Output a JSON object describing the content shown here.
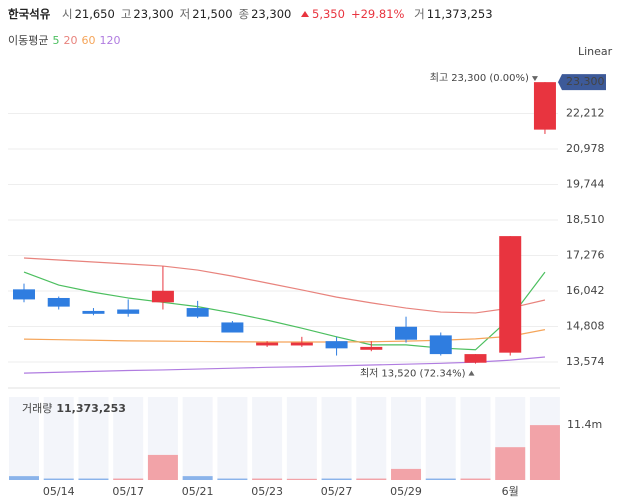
{
  "header": {
    "name": "한국석유",
    "items": [
      {
        "label": "시",
        "value": "21,650"
      },
      {
        "label": "고",
        "value": "23,300"
      },
      {
        "label": "저",
        "value": "21,500"
      },
      {
        "label": "종",
        "value": "23,300"
      }
    ],
    "change": "5,350",
    "change_pct": "+29.81%",
    "volume_label": "거",
    "volume": "11,373,253"
  },
  "chart_data": {
    "type": "candlestick",
    "scale": "Linear",
    "categories": [
      null,
      "05/14",
      null,
      "05/17",
      null,
      "05/21",
      null,
      "05/23",
      null,
      "05/27",
      null,
      "05/29",
      null,
      null,
      "6월",
      null
    ],
    "open": [
      16100,
      15800,
      15350,
      15400,
      15650,
      15450,
      14950,
      14150,
      14150,
      14300,
      14000,
      14800,
      14500,
      13550,
      13900,
      21650
    ],
    "high": [
      16300,
      15850,
      15450,
      15750,
      16900,
      15700,
      15000,
      14300,
      14450,
      14450,
      14300,
      15150,
      14600,
      13850,
      17950,
      23300
    ],
    "low": [
      15650,
      15400,
      15200,
      15150,
      15400,
      15100,
      14600,
      14100,
      14100,
      13800,
      13950,
      14250,
      13800,
      13520,
      13800,
      21500
    ],
    "close": [
      15750,
      15500,
      15250,
      15250,
      16050,
      15150,
      14600,
      14250,
      14250,
      14050,
      14100,
      14350,
      13850,
      13850,
      17950,
      23300
    ],
    "up_color": "#e8343f",
    "down_color": "#2f7de0",
    "ylim": [
      12950,
      24000
    ],
    "yticks": [
      {
        "value": 13574,
        "label": "13,574"
      },
      {
        "value": 14808,
        "label": "14,808"
      },
      {
        "value": 16042,
        "label": "16,042"
      },
      {
        "value": 17276,
        "label": "17,276"
      },
      {
        "value": 18510,
        "label": "18,510"
      },
      {
        "value": 19744,
        "label": "19,744"
      },
      {
        "value": 20978,
        "label": "20,978"
      },
      {
        "value": 22212,
        "label": "22,212"
      }
    ],
    "grid": true,
    "price_tag": {
      "value": 23300,
      "label": "23,300"
    },
    "annotations": [
      {
        "label": "최고",
        "text": "23,300 (0.00%)",
        "index": 15,
        "value": 23300
      },
      {
        "label": "최저",
        "text": "13,520 (72.34%)",
        "index": 13,
        "value": 13520
      }
    ],
    "moving_average": {
      "title": "이동평균",
      "series": [
        {
          "name": "5",
          "color": "#4cbf5f",
          "values": [
            16700,
            16250,
            16000,
            15800,
            15650,
            15500,
            15280,
            15030,
            14750,
            14450,
            14170,
            14170,
            14060,
            14000,
            15100,
            16700
          ]
        },
        {
          "name": "20",
          "color": "#e8837d",
          "values": [
            17190,
            17120,
            17050,
            16980,
            16910,
            16770,
            16560,
            16320,
            16080,
            15830,
            15630,
            15450,
            15310,
            15280,
            15450,
            15730
          ]
        },
        {
          "name": "60",
          "color": "#f5a55a",
          "values": [
            14370,
            14350,
            14330,
            14310,
            14300,
            14290,
            14280,
            14270,
            14270,
            14270,
            14280,
            14300,
            14330,
            14380,
            14470,
            14700
          ]
        },
        {
          "name": "120",
          "color": "#b07ce0",
          "values": [
            13190,
            13220,
            13250,
            13280,
            13300,
            13330,
            13360,
            13390,
            13410,
            13440,
            13470,
            13500,
            13530,
            13570,
            13640,
            13750
          ]
        }
      ]
    },
    "volume": {
      "type": "bar",
      "title": "거래량",
      "total": "11,373,253",
      "values": [
        800000,
        300000,
        300000,
        300000,
        5200000,
        800000,
        300000,
        300000,
        250000,
        300000,
        300000,
        2300000,
        300000,
        300000,
        6800000,
        11373253
      ],
      "colors": [
        "#8ab3ea",
        "#8ab3ea",
        "#8ab3ea",
        "#f2a3a8",
        "#f2a3a8",
        "#8ab3ea",
        "#8ab3ea",
        "#f2a3a8",
        "#f2a3a8",
        "#8ab3ea",
        "#f2a3a8",
        "#f2a3a8",
        "#8ab3ea",
        "#f2a3a8",
        "#f2a3a8",
        "#f2a3a8"
      ],
      "ylim": [
        0,
        17200000
      ],
      "yticks": [
        {
          "value": 11400000,
          "label": "11.4m"
        }
      ]
    }
  }
}
